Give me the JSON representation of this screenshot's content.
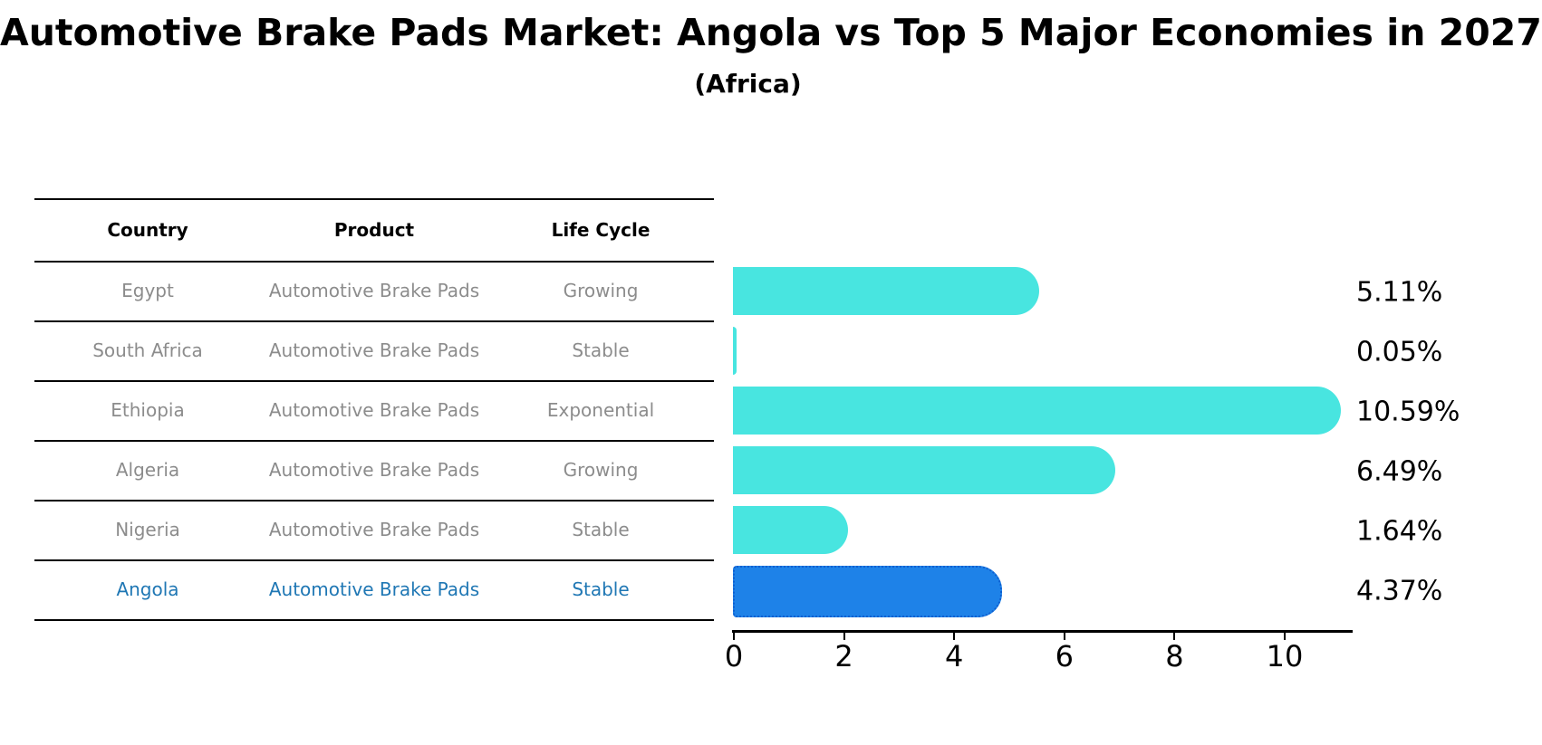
{
  "title": "Automotive Brake Pads Market: Angola vs Top 5 Major Economies in 2027",
  "subtitle": "(Africa)",
  "table": {
    "headers": [
      "Country",
      "Product",
      "Life Cycle"
    ],
    "rows": [
      {
        "country": "Egypt",
        "product": "Automotive Brake Pads",
        "life_cycle": "Growing",
        "highlight": false
      },
      {
        "country": "South Africa",
        "product": "Automotive Brake Pads",
        "life_cycle": "Stable",
        "highlight": false
      },
      {
        "country": "Ethiopia",
        "product": "Automotive Brake Pads",
        "life_cycle": "Exponential",
        "highlight": false
      },
      {
        "country": "Algeria",
        "product": "Automotive Brake Pads",
        "life_cycle": "Growing",
        "highlight": false
      },
      {
        "country": "Nigeria",
        "product": "Automotive Brake Pads",
        "life_cycle": "Stable",
        "highlight": false
      },
      {
        "country": "Angola",
        "product": "Automotive Brake Pads",
        "life_cycle": "Stable",
        "highlight": true
      }
    ]
  },
  "chart_data": {
    "type": "bar",
    "orientation": "horizontal",
    "title": "Automotive Brake Pads Market: Angola vs Top 5 Major Economies in 2027 (Africa)",
    "categories": [
      "Egypt",
      "South Africa",
      "Ethiopia",
      "Algeria",
      "Nigeria",
      "Angola"
    ],
    "values": [
      5.11,
      0.05,
      10.59,
      6.49,
      1.64,
      4.37
    ],
    "value_labels": [
      "5.11%",
      "0.05%",
      "10.59%",
      "6.49%",
      "1.64%",
      "4.37%"
    ],
    "unit": "%",
    "xlabel": "",
    "ylabel": "",
    "xlim": [
      0,
      11.25
    ],
    "x_ticks": [
      0,
      2,
      4,
      6,
      8,
      10
    ],
    "grid": false,
    "legend": false,
    "highlight_category": "Angola",
    "colors": {
      "bar": "#48E5E0",
      "highlight_bar": "#1E82E8",
      "highlight_bar_border": "#0F5FD0",
      "highlight_text": "#1F77B4",
      "table_text": "#8C8C8C",
      "header_text": "#000000",
      "axis": "#000000"
    }
  }
}
